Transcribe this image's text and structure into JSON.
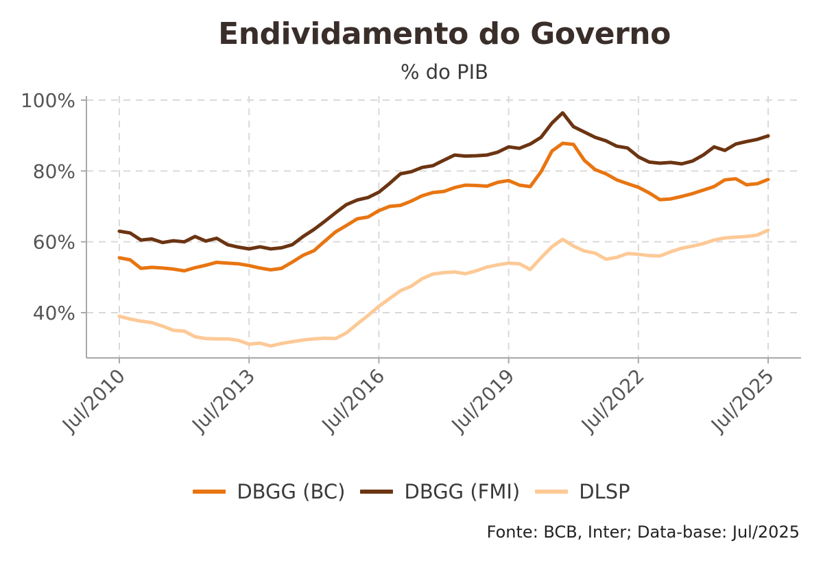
{
  "title": "Endividamento do Governo",
  "subtitle": "% do PIB",
  "caption": "Fonte: BCB, Inter; Data-base: Jul/2025",
  "colors": {
    "dbgg_bc": "#e87511",
    "dbgg_fmi": "#6b3412",
    "dlsp": "#fdc996"
  },
  "chart_data": {
    "type": "line",
    "x_ticks": [
      "Jul/2010",
      "Jul/2013",
      "Jul/2016",
      "Jul/2019",
      "Jul/2022",
      "Jul/2025"
    ],
    "y_ticks": [
      "40%",
      "60%",
      "80%",
      "100%"
    ],
    "xlim": [
      "2010-07",
      "2025-07"
    ],
    "ylim": [
      27,
      100
    ],
    "grid": true,
    "legend_position": "bottom",
    "series": [
      {
        "name": "DBGG (BC)",
        "color": "#e87511",
        "points": [
          [
            "2010-07",
            55.5
          ],
          [
            "2010-10",
            54.9
          ],
          [
            "2011-01",
            52.5
          ],
          [
            "2011-04",
            52.8
          ],
          [
            "2011-07",
            52.6
          ],
          [
            "2011-10",
            52.3
          ],
          [
            "2012-01",
            51.8
          ],
          [
            "2012-04",
            52.7
          ],
          [
            "2012-07",
            53.4
          ],
          [
            "2012-10",
            54.2
          ],
          [
            "2013-01",
            54.0
          ],
          [
            "2013-04",
            53.8
          ],
          [
            "2013-07",
            53.3
          ],
          [
            "2013-10",
            52.6
          ],
          [
            "2014-01",
            52.1
          ],
          [
            "2014-04",
            52.5
          ],
          [
            "2014-07",
            54.3
          ],
          [
            "2014-10",
            56.2
          ],
          [
            "2015-01",
            57.5
          ],
          [
            "2015-04",
            60.2
          ],
          [
            "2015-07",
            62.8
          ],
          [
            "2015-10",
            64.6
          ],
          [
            "2016-01",
            66.5
          ],
          [
            "2016-04",
            67.0
          ],
          [
            "2016-07",
            68.8
          ],
          [
            "2016-10",
            70.0
          ],
          [
            "2017-01",
            70.3
          ],
          [
            "2017-04",
            71.5
          ],
          [
            "2017-07",
            73.0
          ],
          [
            "2017-10",
            73.9
          ],
          [
            "2018-01",
            74.2
          ],
          [
            "2018-04",
            75.3
          ],
          [
            "2018-07",
            76.0
          ],
          [
            "2018-10",
            75.9
          ],
          [
            "2019-01",
            75.7
          ],
          [
            "2019-04",
            76.8
          ],
          [
            "2019-07",
            77.3
          ],
          [
            "2019-10",
            76.0
          ],
          [
            "2020-01",
            75.6
          ],
          [
            "2020-04",
            79.8
          ],
          [
            "2020-07",
            85.6
          ],
          [
            "2020-10",
            87.8
          ],
          [
            "2021-01",
            87.5
          ],
          [
            "2021-04",
            83.0
          ],
          [
            "2021-07",
            80.4
          ],
          [
            "2021-10",
            79.2
          ],
          [
            "2022-01",
            77.5
          ],
          [
            "2022-04",
            76.4
          ],
          [
            "2022-07",
            75.4
          ],
          [
            "2022-10",
            73.8
          ],
          [
            "2023-01",
            71.9
          ],
          [
            "2023-04",
            72.1
          ],
          [
            "2023-07",
            72.8
          ],
          [
            "2023-10",
            73.6
          ],
          [
            "2024-01",
            74.6
          ],
          [
            "2024-04",
            75.6
          ],
          [
            "2024-07",
            77.5
          ],
          [
            "2024-10",
            77.8
          ],
          [
            "2025-01",
            76.1
          ],
          [
            "2025-04",
            76.4
          ],
          [
            "2025-07",
            77.6
          ]
        ]
      },
      {
        "name": "DBGG (FMI)",
        "color": "#6b3412",
        "points": [
          [
            "2010-07",
            63.0
          ],
          [
            "2010-10",
            62.5
          ],
          [
            "2011-01",
            60.5
          ],
          [
            "2011-04",
            60.8
          ],
          [
            "2011-07",
            59.8
          ],
          [
            "2011-10",
            60.3
          ],
          [
            "2012-01",
            60.0
          ],
          [
            "2012-04",
            61.5
          ],
          [
            "2012-07",
            60.2
          ],
          [
            "2012-10",
            61.0
          ],
          [
            "2013-01",
            59.2
          ],
          [
            "2013-04",
            58.5
          ],
          [
            "2013-07",
            58.0
          ],
          [
            "2013-10",
            58.6
          ],
          [
            "2014-01",
            58.0
          ],
          [
            "2014-04",
            58.3
          ],
          [
            "2014-07",
            59.2
          ],
          [
            "2014-10",
            61.5
          ],
          [
            "2015-01",
            63.5
          ],
          [
            "2015-04",
            65.8
          ],
          [
            "2015-07",
            68.2
          ],
          [
            "2015-10",
            70.5
          ],
          [
            "2016-01",
            71.8
          ],
          [
            "2016-04",
            72.5
          ],
          [
            "2016-07",
            74.0
          ],
          [
            "2016-10",
            76.5
          ],
          [
            "2017-01",
            79.2
          ],
          [
            "2017-04",
            79.8
          ],
          [
            "2017-07",
            81.0
          ],
          [
            "2017-10",
            81.5
          ],
          [
            "2018-01",
            83.0
          ],
          [
            "2018-04",
            84.5
          ],
          [
            "2018-07",
            84.2
          ],
          [
            "2018-10",
            84.3
          ],
          [
            "2019-01",
            84.5
          ],
          [
            "2019-04",
            85.3
          ],
          [
            "2019-07",
            86.8
          ],
          [
            "2019-10",
            86.4
          ],
          [
            "2020-01",
            87.6
          ],
          [
            "2020-04",
            89.5
          ],
          [
            "2020-07",
            93.5
          ],
          [
            "2020-10",
            96.4
          ],
          [
            "2021-01",
            92.5
          ],
          [
            "2021-04",
            91.0
          ],
          [
            "2021-07",
            89.5
          ],
          [
            "2021-10",
            88.5
          ],
          [
            "2022-01",
            87.0
          ],
          [
            "2022-04",
            86.5
          ],
          [
            "2022-07",
            84.0
          ],
          [
            "2022-10",
            82.5
          ],
          [
            "2023-01",
            82.2
          ],
          [
            "2023-04",
            82.4
          ],
          [
            "2023-07",
            82.0
          ],
          [
            "2023-10",
            82.8
          ],
          [
            "2024-01",
            84.5
          ],
          [
            "2024-04",
            86.8
          ],
          [
            "2024-07",
            85.8
          ],
          [
            "2024-10",
            87.6
          ],
          [
            "2025-01",
            88.3
          ],
          [
            "2025-04",
            88.9
          ],
          [
            "2025-07",
            89.9
          ]
        ]
      },
      {
        "name": "DLSP",
        "color": "#fdc996",
        "points": [
          [
            "2010-07",
            39.0
          ],
          [
            "2010-10",
            38.2
          ],
          [
            "2011-01",
            37.6
          ],
          [
            "2011-04",
            37.2
          ],
          [
            "2011-07",
            36.2
          ],
          [
            "2011-10",
            35.0
          ],
          [
            "2012-01",
            34.8
          ],
          [
            "2012-04",
            33.2
          ],
          [
            "2012-07",
            32.7
          ],
          [
            "2012-10",
            32.6
          ],
          [
            "2013-01",
            32.6
          ],
          [
            "2013-04",
            32.2
          ],
          [
            "2013-07",
            31.1
          ],
          [
            "2013-10",
            31.4
          ],
          [
            "2014-01",
            30.6
          ],
          [
            "2014-04",
            31.3
          ],
          [
            "2014-07",
            31.8
          ],
          [
            "2014-10",
            32.3
          ],
          [
            "2015-01",
            32.6
          ],
          [
            "2015-04",
            32.8
          ],
          [
            "2015-07",
            32.7
          ],
          [
            "2015-10",
            34.3
          ],
          [
            "2016-01",
            36.8
          ],
          [
            "2016-04",
            39.2
          ],
          [
            "2016-07",
            41.8
          ],
          [
            "2016-10",
            44.0
          ],
          [
            "2017-01",
            46.2
          ],
          [
            "2017-04",
            47.5
          ],
          [
            "2017-07",
            49.6
          ],
          [
            "2017-10",
            50.9
          ],
          [
            "2018-01",
            51.3
          ],
          [
            "2018-04",
            51.5
          ],
          [
            "2018-07",
            51.0
          ],
          [
            "2018-10",
            51.8
          ],
          [
            "2019-01",
            52.9
          ],
          [
            "2019-04",
            53.5
          ],
          [
            "2019-07",
            54.0
          ],
          [
            "2019-10",
            53.8
          ],
          [
            "2020-01",
            52.2
          ],
          [
            "2020-04",
            55.5
          ],
          [
            "2020-07",
            58.6
          ],
          [
            "2020-10",
            60.7
          ],
          [
            "2021-01",
            58.8
          ],
          [
            "2021-04",
            57.4
          ],
          [
            "2021-07",
            56.8
          ],
          [
            "2021-10",
            55.1
          ],
          [
            "2022-01",
            55.6
          ],
          [
            "2022-04",
            56.7
          ],
          [
            "2022-07",
            56.5
          ],
          [
            "2022-10",
            56.1
          ],
          [
            "2023-01",
            56.0
          ],
          [
            "2023-04",
            57.2
          ],
          [
            "2023-07",
            58.2
          ],
          [
            "2023-10",
            58.8
          ],
          [
            "2024-01",
            59.5
          ],
          [
            "2024-04",
            60.5
          ],
          [
            "2024-07",
            61.1
          ],
          [
            "2024-10",
            61.3
          ],
          [
            "2025-01",
            61.5
          ],
          [
            "2025-04",
            61.9
          ],
          [
            "2025-07",
            63.3
          ]
        ]
      }
    ]
  }
}
